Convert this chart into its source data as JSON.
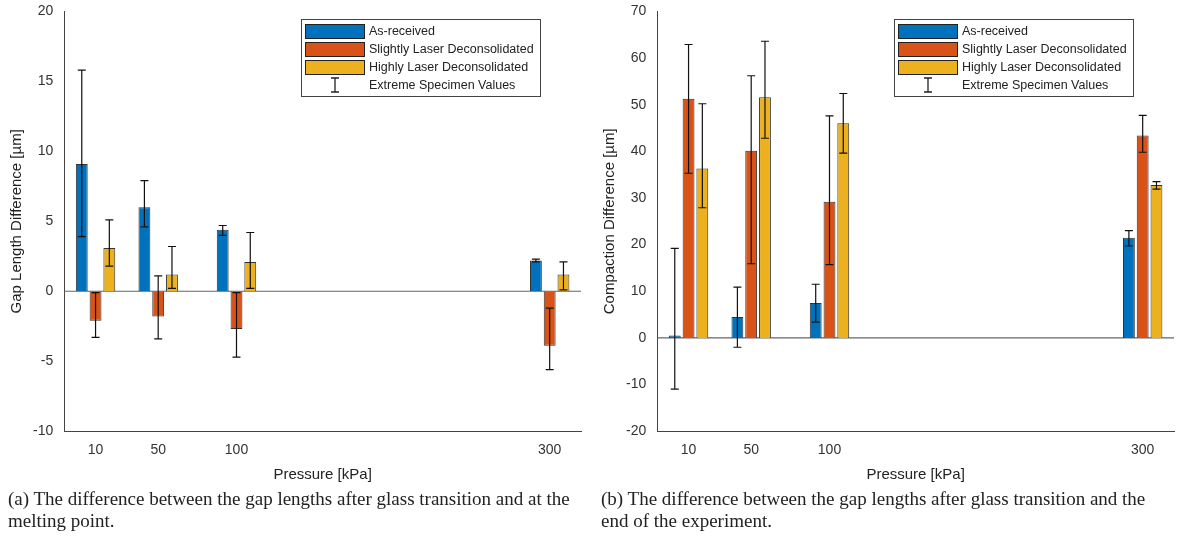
{
  "chart_data": [
    {
      "type": "bar",
      "x": [
        10,
        50,
        100,
        300
      ],
      "xlabel": "Pressure [kPa]",
      "ylabel": "Gap Length Difference [µm]",
      "xlim": [
        -10,
        320
      ],
      "xticks": [
        10,
        50,
        100,
        300
      ],
      "ylim": [
        -10,
        20
      ],
      "yticks": [
        -10,
        -5,
        0,
        5,
        10,
        15,
        20
      ],
      "legend": "top right",
      "ref_lines": [
        {
          "axis": "y",
          "value": 0
        }
      ],
      "annotations": [
        "Extreme Specimen Values",
        "(a) The difference between the gap lengths after glass transition and at the melting point."
      ],
      "series": [
        {
          "name": "As-received",
          "color": "#0072bd",
          "values": [
            9.1,
            6.0,
            4.4,
            2.2
          ],
          "errors": [
            [
              3.9,
              15.8
            ],
            [
              4.6,
              7.9
            ],
            [
              4.0,
              4.7
            ],
            [
              2.1,
              2.3
            ]
          ]
        },
        {
          "name": "Slightly Laser Deconsolidated",
          "color": "#d95319",
          "values": [
            -2.1,
            -1.8,
            -2.7,
            -3.9
          ],
          "errors": [
            [
              -3.3,
              -0.1
            ],
            [
              -3.4,
              1.1
            ],
            [
              -4.7,
              -0.1
            ],
            [
              -5.6,
              -1.2
            ]
          ]
        },
        {
          "name": "Highly Laser Deconsolidated",
          "color": "#edb120",
          "values": [
            3.1,
            1.2,
            2.1,
            1.2
          ],
          "errors": [
            [
              1.8,
              5.1
            ],
            [
              0.2,
              3.2
            ],
            [
              0.2,
              4.2
            ],
            [
              0.1,
              2.1
            ]
          ]
        }
      ]
    },
    {
      "type": "bar",
      "x": [
        10,
        50,
        100,
        300
      ],
      "xlabel": "Pressure [kPa]",
      "ylabel": "Compaction Difference [µm]",
      "xlim": [
        -10,
        320
      ],
      "xticks": [
        10,
        50,
        100,
        300
      ],
      "ylim": [
        -20,
        70
      ],
      "yticks": [
        -20,
        -10,
        0,
        10,
        20,
        30,
        40,
        50,
        60,
        70
      ],
      "legend": "top right",
      "ref_lines": [
        {
          "axis": "y",
          "value": 0
        }
      ],
      "annotations": [
        "Extreme Specimen Values",
        "(b) The difference between the gap lengths after glass transition and the end of the experiment."
      ],
      "series": [
        {
          "name": "As-received",
          "color": "#0072bd",
          "values": [
            0.5,
            4.5,
            7.5,
            21.5
          ],
          "errors": [
            [
              -11,
              19.2
            ],
            [
              -2,
              10.9
            ],
            [
              3.4,
              11.5
            ],
            [
              19.7,
              23.0
            ]
          ]
        },
        {
          "name": "Slightly Laser Deconsolidated",
          "color": "#d95319",
          "values": [
            51.3,
            40.1,
            29.2,
            43.4
          ],
          "errors": [
            [
              35.3,
              62.9
            ],
            [
              15.9,
              56.2
            ],
            [
              15.7,
              47.6
            ],
            [
              39.8,
              47.7
            ]
          ]
        },
        {
          "name": "Highly Laser Deconsolidated",
          "color": "#edb120",
          "values": [
            36.3,
            51.6,
            46.0,
            32.8
          ],
          "errors": [
            [
              27.9,
              50.2
            ],
            [
              42.8,
              63.6
            ],
            [
              39.6,
              52.4
            ],
            [
              31.9,
              33.5
            ]
          ]
        }
      ]
    }
  ]
}
